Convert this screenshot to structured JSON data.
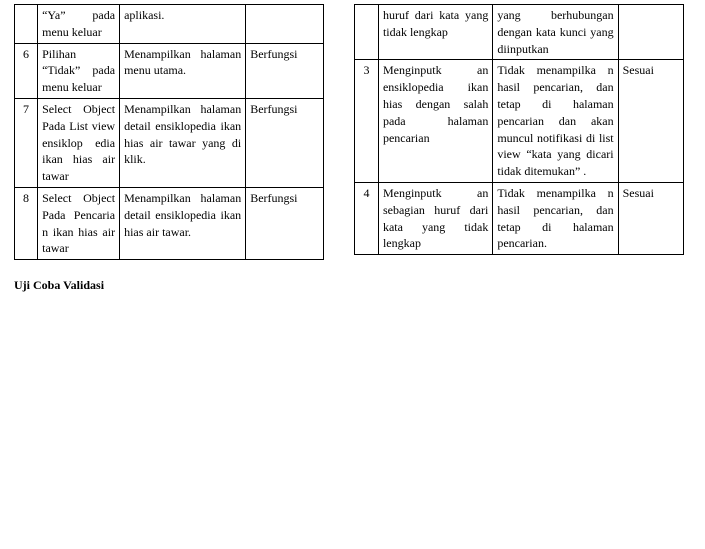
{
  "leftTable": {
    "rows": [
      {
        "num": "",
        "col2": "“Ya” pada menu keluar",
        "col3": "aplikasi.",
        "col4": ""
      },
      {
        "num": "6",
        "col2": "Pilihan “Tidak” pada menu keluar",
        "col3": "Menampilkan halaman menu utama.",
        "col4": "Berfungsi"
      },
      {
        "num": "7",
        "col2": "Select Object Pada List view ensiklop edia ikan hias air tawar",
        "col3": "Menampilkan halaman detail ensiklopedia ikan hias air tawar yang di klik.",
        "col4": "Berfungsi"
      },
      {
        "num": "8",
        "col2": "Select Object Pada Pencaria n ikan hias air tawar",
        "col3": "Menampilkan halaman detail ensiklopedia ikan hias air tawar.",
        "col4": "Berfungsi"
      }
    ]
  },
  "footerHeading": "Uji Coba Validasi",
  "rightTable": {
    "rows": [
      {
        "num": "",
        "col2": "huruf dari kata yang tidak lengkap",
        "col3": "yang berhubungan dengan kata kunci yang diinputkan",
        "col4": ""
      },
      {
        "num": "3",
        "col2": "Menginputk an ensiklopedia ikan hias dengan salah pada halaman pencarian",
        "col3": "Tidak menampilka n hasil pencarian, dan tetap di halaman pencarian dan akan muncul notifikasi di list view “kata yang dicari tidak ditemukan” .",
        "col4": "Sesuai"
      },
      {
        "num": "4",
        "col2": "Menginputk an sebagian huruf dari kata yang tidak lengkap",
        "col3": "Tidak menampilka n hasil pencarian, dan tetap di halaman pencarian.",
        "col4": "Sesuai"
      }
    ]
  }
}
